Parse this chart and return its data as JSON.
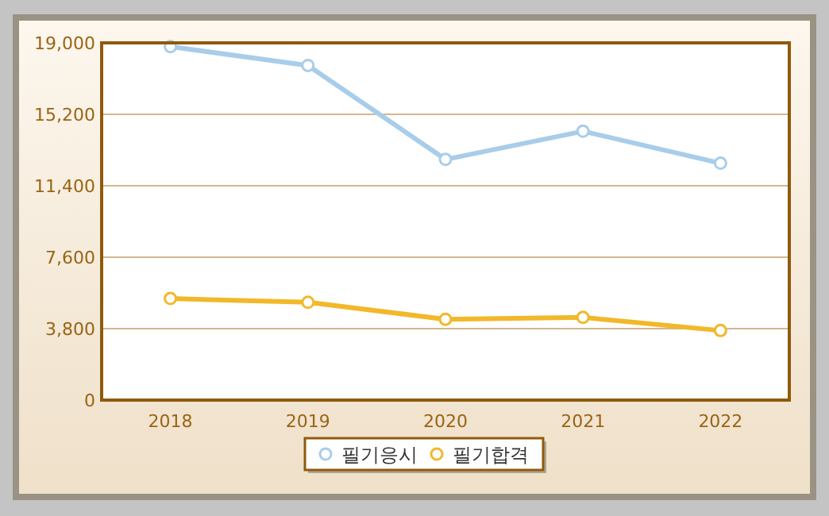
{
  "chart_data": {
    "type": "line",
    "categories": [
      "2018",
      "2019",
      "2020",
      "2021",
      "2022"
    ],
    "series": [
      {
        "name": "필기응시",
        "color": "#a8cdea",
        "values": [
          18800,
          17800,
          12800,
          14300,
          12600
        ]
      },
      {
        "name": "필기합격",
        "color": "#f2b82a",
        "values": [
          5400,
          5200,
          4300,
          4400,
          3700
        ]
      }
    ],
    "ylim": [
      0,
      19000
    ],
    "yticks": [
      0,
      {
        "value": 3800,
        "label": "3,800"
      },
      {
        "value": 7600,
        "label": "7,600"
      },
      {
        "value": 11400,
        "label": "11,400"
      },
      {
        "value": 15200,
        "label": "15,200"
      },
      {
        "value": 19000,
        "label": "19,000"
      }
    ],
    "grid": "y",
    "legend": "bottom",
    "marker": "circle",
    "line_style": "solid"
  }
}
